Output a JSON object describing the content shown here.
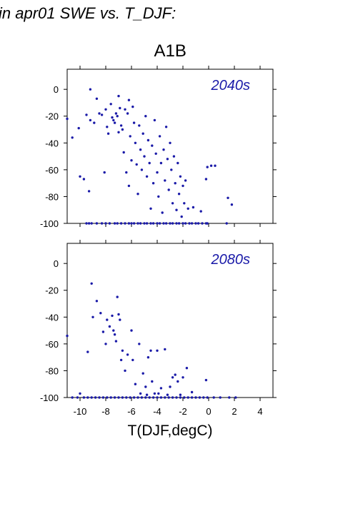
{
  "figure": {
    "title": "in apr01 SWE vs. T_DJF:",
    "scenario": "A1B",
    "xlabel": "T(DJF,degC)"
  },
  "colors": {
    "points": "#1a1aa8",
    "period_label": "#1a1aa8"
  },
  "chart_data": [
    {
      "type": "scatter",
      "panel_label": "2040s",
      "xlim": [
        -11,
        5
      ],
      "ylim": [
        -100,
        15
      ],
      "xticks": [
        -10,
        -8,
        -6,
        -4,
        -2,
        0,
        2,
        4
      ],
      "yticks": [
        0,
        -20,
        -40,
        -60,
        -80,
        -100
      ],
      "show_x_tick_labels": false,
      "points": [
        [
          -11,
          -22
        ],
        [
          -10.6,
          -36
        ],
        [
          -10.1,
          -29
        ],
        [
          -10,
          -65
        ],
        [
          -9.7,
          -67
        ],
        [
          -9.5,
          -19
        ],
        [
          -9.3,
          -76
        ],
        [
          -9.2,
          0
        ],
        [
          -9.2,
          -23
        ],
        [
          -8.9,
          -25
        ],
        [
          -8.7,
          -7
        ],
        [
          -8.5,
          -18
        ],
        [
          -8.3,
          -19
        ],
        [
          -8.1,
          -62
        ],
        [
          -8,
          -15
        ],
        [
          -7.9,
          -28
        ],
        [
          -7.8,
          -33
        ],
        [
          -7.6,
          -11
        ],
        [
          -7.5,
          -21
        ],
        [
          -7.4,
          -23
        ],
        [
          -7.3,
          -25
        ],
        [
          -7.2,
          -18
        ],
        [
          -7.1,
          -20
        ],
        [
          -7,
          -5
        ],
        [
          -7,
          -32
        ],
        [
          -6.9,
          -14
        ],
        [
          -6.8,
          -27
        ],
        [
          -6.7,
          -30
        ],
        [
          -6.6,
          -47
        ],
        [
          -6.5,
          -15
        ],
        [
          -6.4,
          -62
        ],
        [
          -6.3,
          -18
        ],
        [
          -6.2,
          -8
        ],
        [
          -6.2,
          -72
        ],
        [
          -6.1,
          -35
        ],
        [
          -6,
          -53
        ],
        [
          -5.9,
          -13
        ],
        [
          -5.8,
          -25
        ],
        [
          -5.7,
          -40
        ],
        [
          -5.6,
          -56
        ],
        [
          -5.5,
          -78
        ],
        [
          -5.4,
          -27
        ],
        [
          -5.3,
          -45
        ],
        [
          -5.2,
          -60
        ],
        [
          -5.1,
          -33
        ],
        [
          -5,
          -50
        ],
        [
          -4.9,
          -20
        ],
        [
          -4.8,
          -65
        ],
        [
          -4.7,
          -38
        ],
        [
          -4.6,
          -55
        ],
        [
          -4.5,
          -89
        ],
        [
          -4.4,
          -42
        ],
        [
          -4.3,
          -70
        ],
        [
          -4.2,
          -23
        ],
        [
          -4.1,
          -48
        ],
        [
          -4,
          -62
        ],
        [
          -3.9,
          -80
        ],
        [
          -3.8,
          -35
        ],
        [
          -3.7,
          -55
        ],
        [
          -3.6,
          -92
        ],
        [
          -3.5,
          -45
        ],
        [
          -3.4,
          -68
        ],
        [
          -3.3,
          -28
        ],
        [
          -3.2,
          -52
        ],
        [
          -3.1,
          -75
        ],
        [
          -3,
          -40
        ],
        [
          -2.9,
          -60
        ],
        [
          -2.8,
          -85
        ],
        [
          -2.7,
          -50
        ],
        [
          -2.6,
          -70
        ],
        [
          -2.5,
          -90
        ],
        [
          -2.4,
          -55
        ],
        [
          -2.3,
          -78
        ],
        [
          -2.2,
          -65
        ],
        [
          -2.1,
          -95
        ],
        [
          -2,
          -72
        ],
        [
          -1.9,
          -85
        ],
        [
          -1.8,
          -68
        ],
        [
          -1.6,
          -89
        ],
        [
          -1.2,
          -88
        ],
        [
          -0.6,
          -91
        ],
        [
          -0.2,
          -67
        ],
        [
          -0.1,
          -58
        ],
        [
          0.2,
          -57
        ],
        [
          0.5,
          -57
        ],
        [
          1.5,
          -81
        ],
        [
          1.8,
          -86
        ],
        [
          1.4,
          -100
        ],
        [
          -9.5,
          -100
        ],
        [
          -9.3,
          -100
        ],
        [
          -9.1,
          -100
        ],
        [
          -8.7,
          -100
        ],
        [
          -8.3,
          -100
        ],
        [
          -8,
          -100
        ],
        [
          -7.7,
          -100
        ],
        [
          -7.3,
          -100
        ],
        [
          -7.1,
          -100
        ],
        [
          -6.8,
          -100
        ],
        [
          -6.5,
          -100
        ],
        [
          -6.2,
          -100
        ],
        [
          -6,
          -100
        ],
        [
          -5.8,
          -100
        ],
        [
          -5.5,
          -100
        ],
        [
          -5.3,
          -100
        ],
        [
          -5,
          -100
        ],
        [
          -4.8,
          -100
        ],
        [
          -4.5,
          -100
        ],
        [
          -4.3,
          -100
        ],
        [
          -4,
          -100
        ],
        [
          -3.8,
          -100
        ],
        [
          -3.5,
          -100
        ],
        [
          -3.3,
          -100
        ],
        [
          -3,
          -100
        ],
        [
          -2.8,
          -100
        ],
        [
          -2.5,
          -100
        ],
        [
          -2.3,
          -100
        ],
        [
          -2,
          -100
        ],
        [
          -1.8,
          -100
        ],
        [
          -1.5,
          -100
        ],
        [
          -1.3,
          -100
        ],
        [
          -1,
          -100
        ],
        [
          -0.8,
          -100
        ],
        [
          -0.5,
          -100
        ],
        [
          -0.2,
          -100
        ],
        [
          -0.1,
          -100
        ]
      ]
    },
    {
      "type": "scatter",
      "panel_label": "2080s",
      "xlim": [
        -11,
        5
      ],
      "ylim": [
        -100,
        15
      ],
      "xticks": [
        -10,
        -8,
        -6,
        -4,
        -2,
        0,
        2,
        4
      ],
      "yticks": [
        0,
        -20,
        -40,
        -60,
        -80,
        -100
      ],
      "show_x_tick_labels": true,
      "points": [
        [
          -11,
          -54
        ],
        [
          -9.4,
          -66
        ],
        [
          -9.1,
          -15
        ],
        [
          -9,
          -40
        ],
        [
          -8.7,
          -28
        ],
        [
          -8.4,
          -37
        ],
        [
          -8.2,
          -51
        ],
        [
          -8,
          -60
        ],
        [
          -7.9,
          -42
        ],
        [
          -7.7,
          -47
        ],
        [
          -7.5,
          -39
        ],
        [
          -7.4,
          -50
        ],
        [
          -7.3,
          -53
        ],
        [
          -7.2,
          -58
        ],
        [
          -7.1,
          -25
        ],
        [
          -7,
          -38
        ],
        [
          -6.9,
          -42
        ],
        [
          -6.8,
          -72
        ],
        [
          -6.7,
          -65
        ],
        [
          -6.5,
          -80
        ],
        [
          -6.3,
          -68
        ],
        [
          -6,
          -50
        ],
        [
          -5.9,
          -72
        ],
        [
          -5.7,
          -90
        ],
        [
          -5.4,
          -60
        ],
        [
          -5.1,
          -82
        ],
        [
          -4.9,
          -92
        ],
        [
          -4.7,
          -70
        ],
        [
          -4.5,
          -65
        ],
        [
          -4.4,
          -88
        ],
        [
          -4.2,
          -97
        ],
        [
          -4,
          -65
        ],
        [
          -3.7,
          -93
        ],
        [
          -3.4,
          -64
        ],
        [
          -3.2,
          -98
        ],
        [
          -3,
          -92
        ],
        [
          -2.8,
          -85
        ],
        [
          -2.6,
          -83
        ],
        [
          -2.4,
          -88
        ],
        [
          -2.2,
          -98
        ],
        [
          -2,
          -85
        ],
        [
          -1.7,
          -78
        ],
        [
          -1.3,
          -96
        ],
        [
          -0.2,
          -87
        ],
        [
          0.4,
          -100
        ],
        [
          0.9,
          -100
        ],
        [
          2.1,
          -100
        ],
        [
          1.6,
          -100
        ],
        [
          -10.6,
          -100
        ],
        [
          -10.2,
          -100
        ],
        [
          -10,
          -97
        ],
        [
          -9.7,
          -100
        ],
        [
          -9.4,
          -100
        ],
        [
          -9.1,
          -100
        ],
        [
          -8.8,
          -100
        ],
        [
          -8.5,
          -100
        ],
        [
          -8.2,
          -100
        ],
        [
          -7.9,
          -100
        ],
        [
          -7.6,
          -100
        ],
        [
          -7.3,
          -100
        ],
        [
          -7,
          -100
        ],
        [
          -6.7,
          -100
        ],
        [
          -6.4,
          -100
        ],
        [
          -6.1,
          -100
        ],
        [
          -5.8,
          -100
        ],
        [
          -5.5,
          -100
        ],
        [
          -5.2,
          -100
        ],
        [
          -4.9,
          -100
        ],
        [
          -4.6,
          -100
        ],
        [
          -4.3,
          -100
        ],
        [
          -4,
          -100
        ],
        [
          -3.7,
          -100
        ],
        [
          -3.4,
          -100
        ],
        [
          -3.1,
          -100
        ],
        [
          -2.8,
          -100
        ],
        [
          -2.5,
          -100
        ],
        [
          -2.2,
          -100
        ],
        [
          -1.9,
          -100
        ],
        [
          -1.6,
          -100
        ],
        [
          -1.3,
          -100
        ],
        [
          -1,
          -100
        ],
        [
          -0.7,
          -100
        ],
        [
          -0.4,
          -100
        ],
        [
          -0.1,
          -100
        ],
        [
          -5.3,
          -97
        ],
        [
          -4.8,
          -98
        ],
        [
          -3.9,
          -97
        ]
      ]
    }
  ]
}
